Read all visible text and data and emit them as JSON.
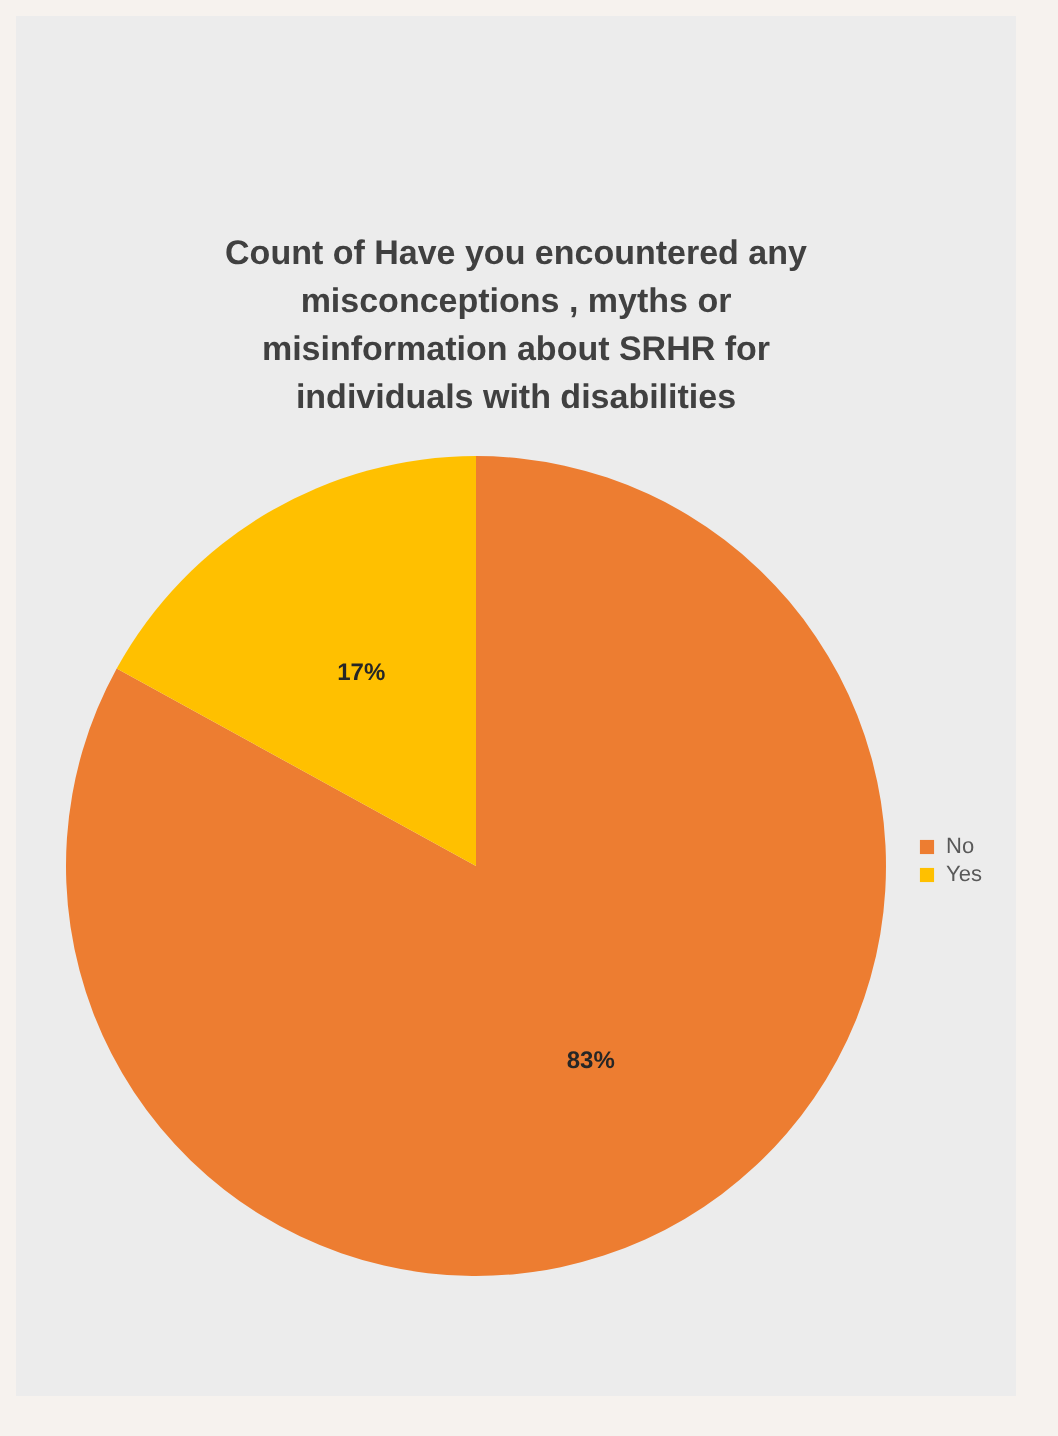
{
  "chart_data": {
    "type": "pie",
    "title": "Count of Have you encountered any misconceptions , myths or misinformation about SRHR for individuals with disabilities",
    "categories": [
      "No",
      "Yes"
    ],
    "values": [
      83,
      17
    ],
    "colors": [
      "#ed7d31",
      "#ffc000"
    ],
    "value_labels": [
      "83%",
      "17%"
    ],
    "legend": "right"
  }
}
